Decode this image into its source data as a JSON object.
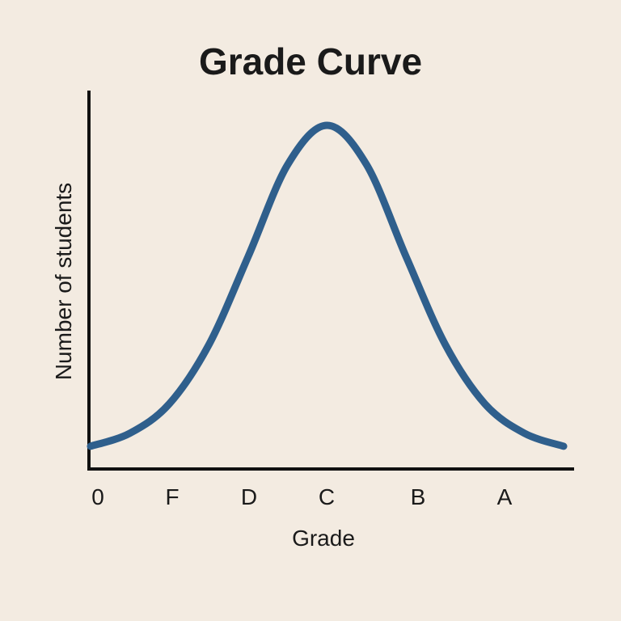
{
  "chart_data": {
    "type": "line",
    "title": "Grade Curve",
    "xlabel": "Grade",
    "ylabel": "Number of students",
    "categories": [
      "0",
      "F",
      "D",
      "C",
      "B",
      "A"
    ],
    "series": [
      {
        "x": [
          -3,
          -2.5,
          -2,
          -1.5,
          -1,
          -0.5,
          0,
          0.5,
          1,
          1.5,
          2,
          2.5,
          3
        ],
        "values": [
          0.02,
          0.06,
          0.15,
          0.33,
          0.6,
          0.88,
          1.0,
          0.88,
          0.6,
          0.33,
          0.15,
          0.06,
          0.02
        ]
      }
    ],
    "grid": false,
    "color": "#2f5f8c"
  }
}
